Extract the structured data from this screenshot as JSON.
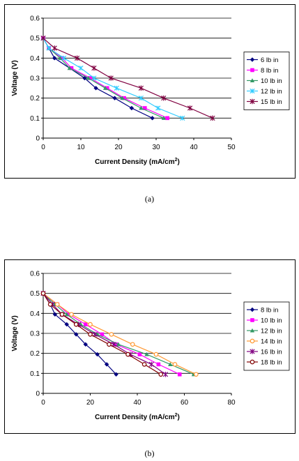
{
  "captions": [
    "(a)",
    "(b)"
  ],
  "chart_data": [
    {
      "type": "line",
      "xlabel": "Current Density (mA/cm",
      "xlabel_sup": "2",
      "xlabel_end": ")",
      "ylabel": "Voltage (V)",
      "xlim": [
        0,
        50
      ],
      "ylim": [
        0,
        0.6
      ],
      "xticks": [
        0,
        10,
        20,
        30,
        40,
        50
      ],
      "yticks": [
        0,
        0.1,
        0.2,
        0.3,
        0.4,
        0.5,
        0.6
      ],
      "ytick_labels": [
        "0",
        "0.1",
        "0.2",
        "0.3",
        "0.4",
        "0.5",
        "0.6"
      ],
      "grid": "horizontal",
      "legend": "right",
      "series": [
        {
          "name": "6 lb in",
          "color": "#000080",
          "marker": "diamond",
          "points": [
            [
              0,
              0.5
            ],
            [
              3,
              0.4
            ],
            [
              11,
              0.3
            ],
            [
              14,
              0.25
            ],
            [
              19,
              0.2
            ],
            [
              23.5,
              0.15
            ],
            [
              29,
              0.1
            ]
          ]
        },
        {
          "name": "8 lb in",
          "color": "#FF00FF",
          "marker": "square",
          "points": [
            [
              0,
              0.5
            ],
            [
              1.5,
              0.45
            ],
            [
              5,
              0.4
            ],
            [
              7.5,
              0.35
            ],
            [
              12.5,
              0.3
            ],
            [
              17,
              0.25
            ],
            [
              21.5,
              0.2
            ],
            [
              27,
              0.15
            ],
            [
              33,
              0.1
            ]
          ]
        },
        {
          "name": "10 lb in",
          "color": "#339966",
          "marker": "triangle",
          "points": [
            [
              0,
              0.5
            ],
            [
              1.5,
              0.45
            ],
            [
              4.5,
              0.4
            ],
            [
              7,
              0.35
            ],
            [
              12,
              0.3
            ],
            [
              16.5,
              0.25
            ],
            [
              21,
              0.2
            ],
            [
              26,
              0.15
            ],
            [
              32,
              0.1
            ]
          ]
        },
        {
          "name": "12 lb in",
          "color": "#33CCFF",
          "marker": "star",
          "points": [
            [
              0,
              0.5
            ],
            [
              1.5,
              0.45
            ],
            [
              5.5,
              0.4
            ],
            [
              10,
              0.35
            ],
            [
              13.5,
              0.3
            ],
            [
              19.5,
              0.25
            ],
            [
              26,
              0.2
            ],
            [
              30.5,
              0.15
            ],
            [
              37,
              0.1
            ]
          ]
        },
        {
          "name": "15 lb in",
          "color": "#800040",
          "marker": "asterisk",
          "points": [
            [
              0,
              0.5
            ],
            [
              3,
              0.45
            ],
            [
              9,
              0.4
            ],
            [
              13.5,
              0.35
            ],
            [
              18,
              0.3
            ],
            [
              26,
              0.25
            ],
            [
              32,
              0.2
            ],
            [
              39,
              0.15
            ],
            [
              45,
              0.1
            ]
          ]
        }
      ]
    },
    {
      "type": "line",
      "xlabel": "Current Density (mA/cm",
      "xlabel_sup": "2",
      "xlabel_end": ")",
      "ylabel": "Voltage (V)",
      "xlim": [
        0,
        80
      ],
      "ylim": [
        0,
        0.6
      ],
      "xticks": [
        0,
        20,
        40,
        60,
        80
      ],
      "yticks": [
        0,
        0.1,
        0.2,
        0.3,
        0.4,
        0.5,
        0.6
      ],
      "ytick_labels": [
        "0",
        "0.1",
        "0.2",
        "0.3",
        "0.4",
        "0.5",
        "0.6"
      ],
      "grid": "horizontal",
      "legend": "right",
      "series": [
        {
          "name": "8 lb in",
          "color": "#000080",
          "marker": "diamond",
          "points": [
            [
              0,
              0.5
            ],
            [
              3,
              0.445
            ],
            [
              5,
              0.395
            ],
            [
              10,
              0.345
            ],
            [
              14,
              0.295
            ],
            [
              18,
              0.245
            ],
            [
              23,
              0.195
            ],
            [
              27,
              0.145
            ],
            [
              31,
              0.095
            ]
          ]
        },
        {
          "name": "10 lb in",
          "color": "#FF00FF",
          "marker": "square",
          "points": [
            [
              0,
              0.5
            ],
            [
              6,
              0.445
            ],
            [
              11,
              0.395
            ],
            [
              18,
              0.345
            ],
            [
              25,
              0.295
            ],
            [
              31,
              0.245
            ],
            [
              41,
              0.195
            ],
            [
              49,
              0.145
            ],
            [
              58,
              0.095
            ]
          ]
        },
        {
          "name": "12 lb in",
          "color": "#339966",
          "marker": "triangle",
          "points": [
            [
              0,
              0.5
            ],
            [
              5,
              0.445
            ],
            [
              10,
              0.395
            ],
            [
              16,
              0.345
            ],
            [
              23,
              0.295
            ],
            [
              32,
              0.245
            ],
            [
              44,
              0.195
            ],
            [
              54,
              0.145
            ],
            [
              64,
              0.095
            ]
          ]
        },
        {
          "name": "14 lb in",
          "color": "#FF9933",
          "marker": "circle",
          "points": [
            [
              0,
              0.5
            ],
            [
              6,
              0.445
            ],
            [
              12,
              0.395
            ],
            [
              20,
              0.345
            ],
            [
              29,
              0.295
            ],
            [
              38,
              0.245
            ],
            [
              48,
              0.195
            ],
            [
              56,
              0.145
            ],
            [
              65,
              0.095
            ]
          ]
        },
        {
          "name": "16 lb in",
          "color": "#800080",
          "marker": "asterisk",
          "points": [
            [
              0,
              0.5
            ],
            [
              4,
              0.445
            ],
            [
              8,
              0.395
            ],
            [
              15,
              0.345
            ],
            [
              22,
              0.295
            ],
            [
              30,
              0.245
            ],
            [
              37,
              0.195
            ],
            [
              46,
              0.145
            ],
            [
              52,
              0.095
            ]
          ]
        },
        {
          "name": "18 lb in",
          "color": "#800000",
          "marker": "circle",
          "points": [
            [
              0,
              0.5
            ],
            [
              3,
              0.445
            ],
            [
              8,
              0.395
            ],
            [
              14,
              0.345
            ],
            [
              20,
              0.295
            ],
            [
              28,
              0.245
            ],
            [
              36,
              0.195
            ],
            [
              43,
              0.145
            ],
            [
              50,
              0.095
            ]
          ]
        }
      ]
    }
  ]
}
